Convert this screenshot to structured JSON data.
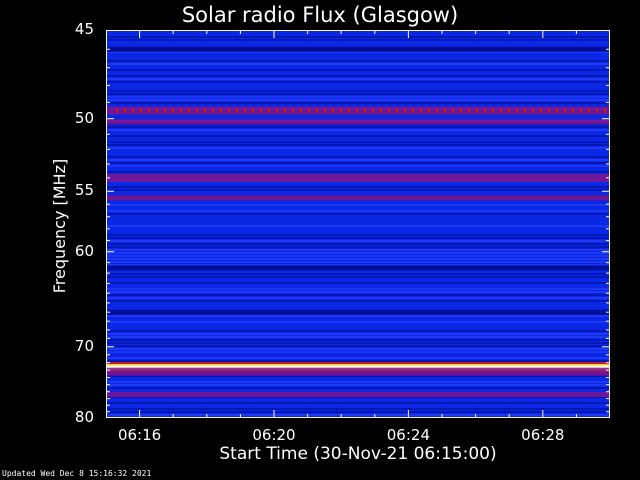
{
  "chart_data": {
    "type": "heatmap",
    "title": "Solar radio Flux (Glasgow)",
    "xlabel": "Start Time (30-Nov-21 06:15:00)",
    "ylabel": "Frequency [MHz]",
    "x_tick_labels": [
      "06:16",
      "06:20",
      "06:24",
      "06:28"
    ],
    "x_tick_minutes": [
      1,
      5,
      9,
      13
    ],
    "xlim_minutes": [
      0,
      15
    ],
    "y_tick_values": [
      45,
      50,
      55,
      60,
      70,
      80
    ],
    "ylim": [
      45,
      80
    ],
    "y_scale": "reciprocal",
    "colormap": [
      "#000a8c",
      "#0a28e6",
      "#3246ff",
      "#82148c",
      "#c81e1e",
      "#ffeb64",
      "#ffffff"
    ],
    "bands": [
      {
        "freq": 46.0,
        "intensity": 0.35
      },
      {
        "freq": 49.5,
        "intensity": 0.7
      },
      {
        "freq": 50.2,
        "intensity": 0.55
      },
      {
        "freq": 54.0,
        "intensity": 0.6
      },
      {
        "freq": 55.5,
        "intensity": 0.5
      },
      {
        "freq": 61.5,
        "intensity": 0.3
      },
      {
        "freq": 66.0,
        "intensity": 0.35
      },
      {
        "freq": 72.6,
        "intensity": 1.0
      },
      {
        "freq": 73.2,
        "intensity": 0.65
      },
      {
        "freq": 76.4,
        "intensity": 0.55
      }
    ]
  },
  "footer": {
    "updated": "Updated Wed Dec  8 15:16:32 2021"
  }
}
